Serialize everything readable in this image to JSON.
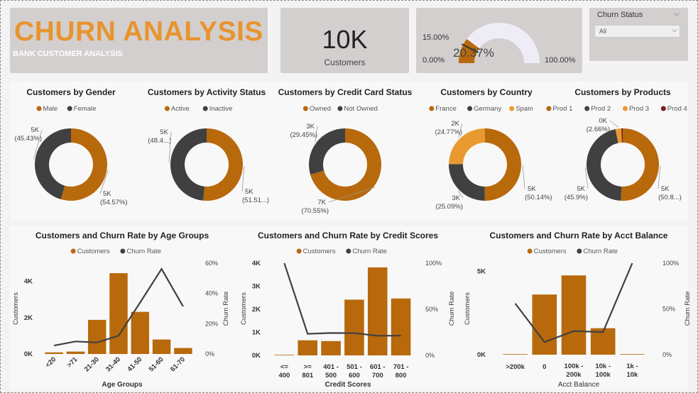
{
  "header": {
    "title": "CHURN ANALYSIS",
    "subtitle": "BANK CUSTOMER ANALYSIS"
  },
  "kpi": {
    "value": "10K",
    "label": "Customers"
  },
  "gauge": {
    "min_label": "0.00%",
    "max_label": "100.00%",
    "target_label": "15.00%",
    "value_label": "20.37%",
    "value": 0.2037,
    "target": 0.15
  },
  "slicer": {
    "title": "Churn Status",
    "value": "All"
  },
  "colors": {
    "orange": "#b8690c",
    "dark": "#404040",
    "light_orange": "#e89a30",
    "maroon": "#7a1c1c",
    "gauge_bg": "#eeedf7"
  },
  "chart_data": [
    {
      "type": "donut",
      "title": "Customers by Gender",
      "legend": [
        {
          "label": "Male",
          "color": "#b8690c"
        },
        {
          "label": "Female",
          "color": "#404040"
        }
      ],
      "values": [
        54.57,
        45.43
      ],
      "labels": [
        {
          "l1": "5K",
          "l2": "(54.57%)"
        },
        {
          "l1": "5K",
          "l2": "(45.43%)"
        }
      ]
    },
    {
      "type": "donut",
      "title": "Customers by Activity Status",
      "legend": [
        {
          "label": "Active",
          "color": "#b8690c"
        },
        {
          "label": "Inactive",
          "color": "#404040"
        }
      ],
      "values": [
        51.51,
        48.49
      ],
      "labels": [
        {
          "l1": "5K",
          "l2": "(51.51...)"
        },
        {
          "l1": "5K",
          "l2": "(48.4...)"
        }
      ]
    },
    {
      "type": "donut",
      "title": "Customers by Credit Card Status",
      "legend": [
        {
          "label": "Owned",
          "color": "#b8690c"
        },
        {
          "label": "Not Owned",
          "color": "#404040"
        }
      ],
      "values": [
        70.55,
        29.45
      ],
      "labels": [
        {
          "l1": "7K",
          "l2": "(70.55%)"
        },
        {
          "l1": "3K",
          "l2": "(29.45%)"
        }
      ]
    },
    {
      "type": "donut",
      "title": "Customers by Country",
      "legend": [
        {
          "label": "France",
          "color": "#b8690c"
        },
        {
          "label": "Germany",
          "color": "#404040"
        },
        {
          "label": "Spain",
          "color": "#e89a30"
        }
      ],
      "values": [
        50.14,
        25.09,
        24.77
      ],
      "labels": [
        {
          "l1": "5K",
          "l2": "(50.14%)"
        },
        {
          "l1": "3K",
          "l2": "(25.09%)"
        },
        {
          "l1": "2K",
          "l2": "(24.77%)"
        }
      ]
    },
    {
      "type": "donut",
      "title": "Customers by Products",
      "legend": [
        {
          "label": "Prod 1",
          "color": "#b8690c"
        },
        {
          "label": "Prod 2",
          "color": "#404040"
        },
        {
          "label": "Prod 3",
          "color": "#e89a30"
        },
        {
          "label": "Prod 4",
          "color": "#7a1c1c"
        }
      ],
      "values": [
        50.84,
        45.9,
        2.66,
        0.6
      ],
      "labels": [
        {
          "l1": "5K",
          "l2": "(50.8...)"
        },
        {
          "l1": "5K",
          "l2": "(45.9%)"
        },
        {
          "l1": "0K",
          "l2": "(2.66%)"
        },
        null
      ]
    },
    {
      "type": "bar",
      "title": "Customers and Churn Rate by Age Groups",
      "legend": [
        {
          "label": "Customers",
          "color": "#b8690c"
        },
        {
          "label": "Churn Rate",
          "color": "#404040"
        }
      ],
      "categories": [
        "<20",
        ">71",
        "21-30",
        "31-40",
        "41-50",
        "51-60",
        "61-70"
      ],
      "values": [
        89,
        133,
        1879,
        4451,
        2320,
        797,
        331
      ],
      "rates": [
        5.6,
        8.3,
        7.6,
        12.1,
        34.0,
        56.2,
        31.4
      ],
      "xlabel": "Age Groups",
      "ylabel": "Customers",
      "y2label": "Churn Rate",
      "ylim": [
        0,
        5000
      ],
      "y2lim": [
        0,
        60
      ],
      "yticks": [
        {
          "v": 0,
          "t": "0K"
        },
        {
          "v": 2000,
          "t": "2K"
        },
        {
          "v": 4000,
          "t": "4K"
        }
      ],
      "y2ticks": [
        {
          "v": 0,
          "t": "0%"
        },
        {
          "v": 20,
          "t": "20%"
        },
        {
          "v": 40,
          "t": "40%"
        },
        {
          "v": 60,
          "t": "60%"
        }
      ],
      "rotate_labels": true
    },
    {
      "type": "bar",
      "title": "Customers and Churn Rate by Credit Scores",
      "legend": [
        {
          "label": "Customers",
          "color": "#b8690c"
        },
        {
          "label": "Churn Rate",
          "color": "#404040"
        }
      ],
      "categories": [
        "<= 400",
        ">= 801",
        "401 - 500",
        "501 - 600",
        "601 - 700",
        "701 - 800"
      ],
      "values": [
        19,
        655,
        621,
        2418,
        3818,
        2469
      ],
      "rates": [
        100,
        23.4,
        24.3,
        24.2,
        21.3,
        21.4
      ],
      "xlabel": "Credit Scores",
      "ylabel": "Customers",
      "y2label": "Churn Rate",
      "ylim": [
        0,
        4000
      ],
      "y2lim": [
        0,
        100
      ],
      "yticks": [
        {
          "v": 0,
          "t": "0K"
        },
        {
          "v": 1000,
          "t": "1K"
        },
        {
          "v": 2000,
          "t": "2K"
        },
        {
          "v": 3000,
          "t": "3K"
        },
        {
          "v": 4000,
          "t": "4K"
        }
      ],
      "y2ticks": [
        {
          "v": 0,
          "t": "0%"
        },
        {
          "v": 50,
          "t": "50%"
        },
        {
          "v": 100,
          "t": "100%"
        }
      ],
      "rotate_labels": false
    },
    {
      "type": "bar",
      "title": "Customers and Churn Rate by Acct Balance",
      "legend": [
        {
          "label": "Customers",
          "color": "#b8690c"
        },
        {
          "label": "Churn Rate",
          "color": "#404040"
        }
      ],
      "categories": [
        ">200k",
        "0",
        "100k - 200k",
        "10k - 100k",
        "1k - 10k"
      ],
      "values": [
        25,
        3617,
        4765,
        1591,
        2
      ],
      "rates": [
        56,
        13.8,
        25.8,
        24.7,
        100
      ],
      "xlabel": "Acct Balance",
      "ylabel": "Customers",
      "y2label": "Churn Rate",
      "ylim": [
        0,
        5500
      ],
      "y2lim": [
        0,
        100
      ],
      "yticks": [
        {
          "v": 0,
          "t": "0K"
        },
        {
          "v": 5000,
          "t": "5K"
        }
      ],
      "y2ticks": [
        {
          "v": 0,
          "t": "0%"
        },
        {
          "v": 50,
          "t": "50%"
        },
        {
          "v": 100,
          "t": "100%"
        }
      ],
      "rotate_labels": false
    }
  ]
}
